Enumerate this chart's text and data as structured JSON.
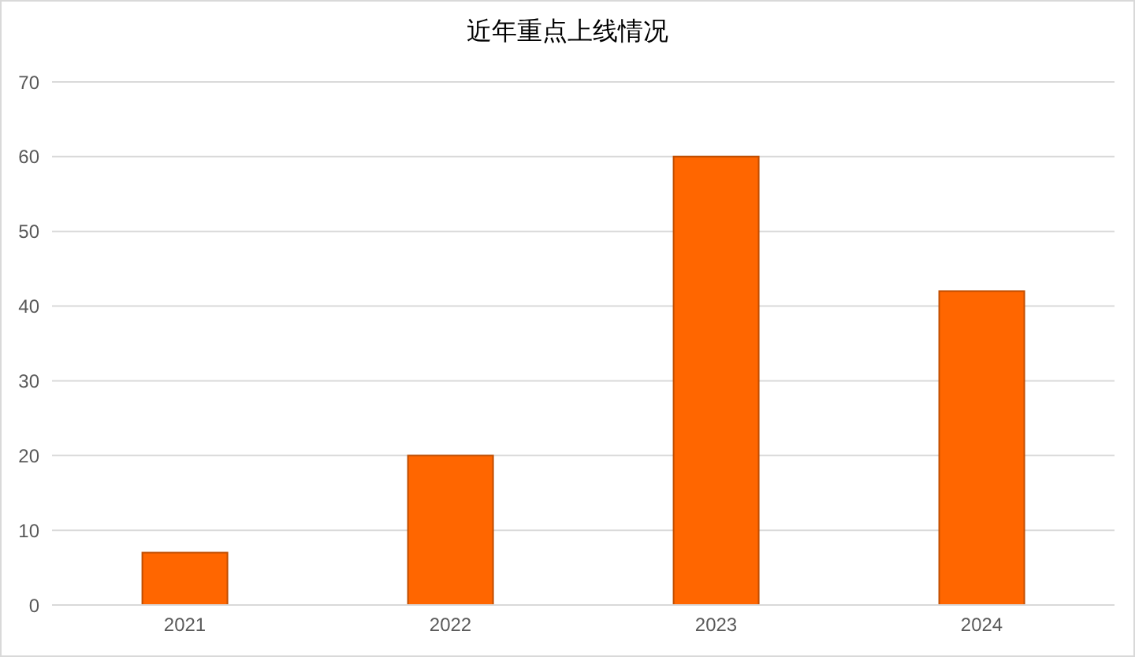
{
  "chart_data": {
    "type": "bar",
    "title": "近年重点上线情况",
    "categories": [
      "2021",
      "2022",
      "2023",
      "2024"
    ],
    "values": [
      7,
      20,
      60,
      42
    ],
    "color": "#ff6600",
    "ylim": [
      0,
      70
    ],
    "yticks": [
      0,
      10,
      20,
      30,
      40,
      50,
      60,
      70
    ],
    "grid": "y"
  }
}
